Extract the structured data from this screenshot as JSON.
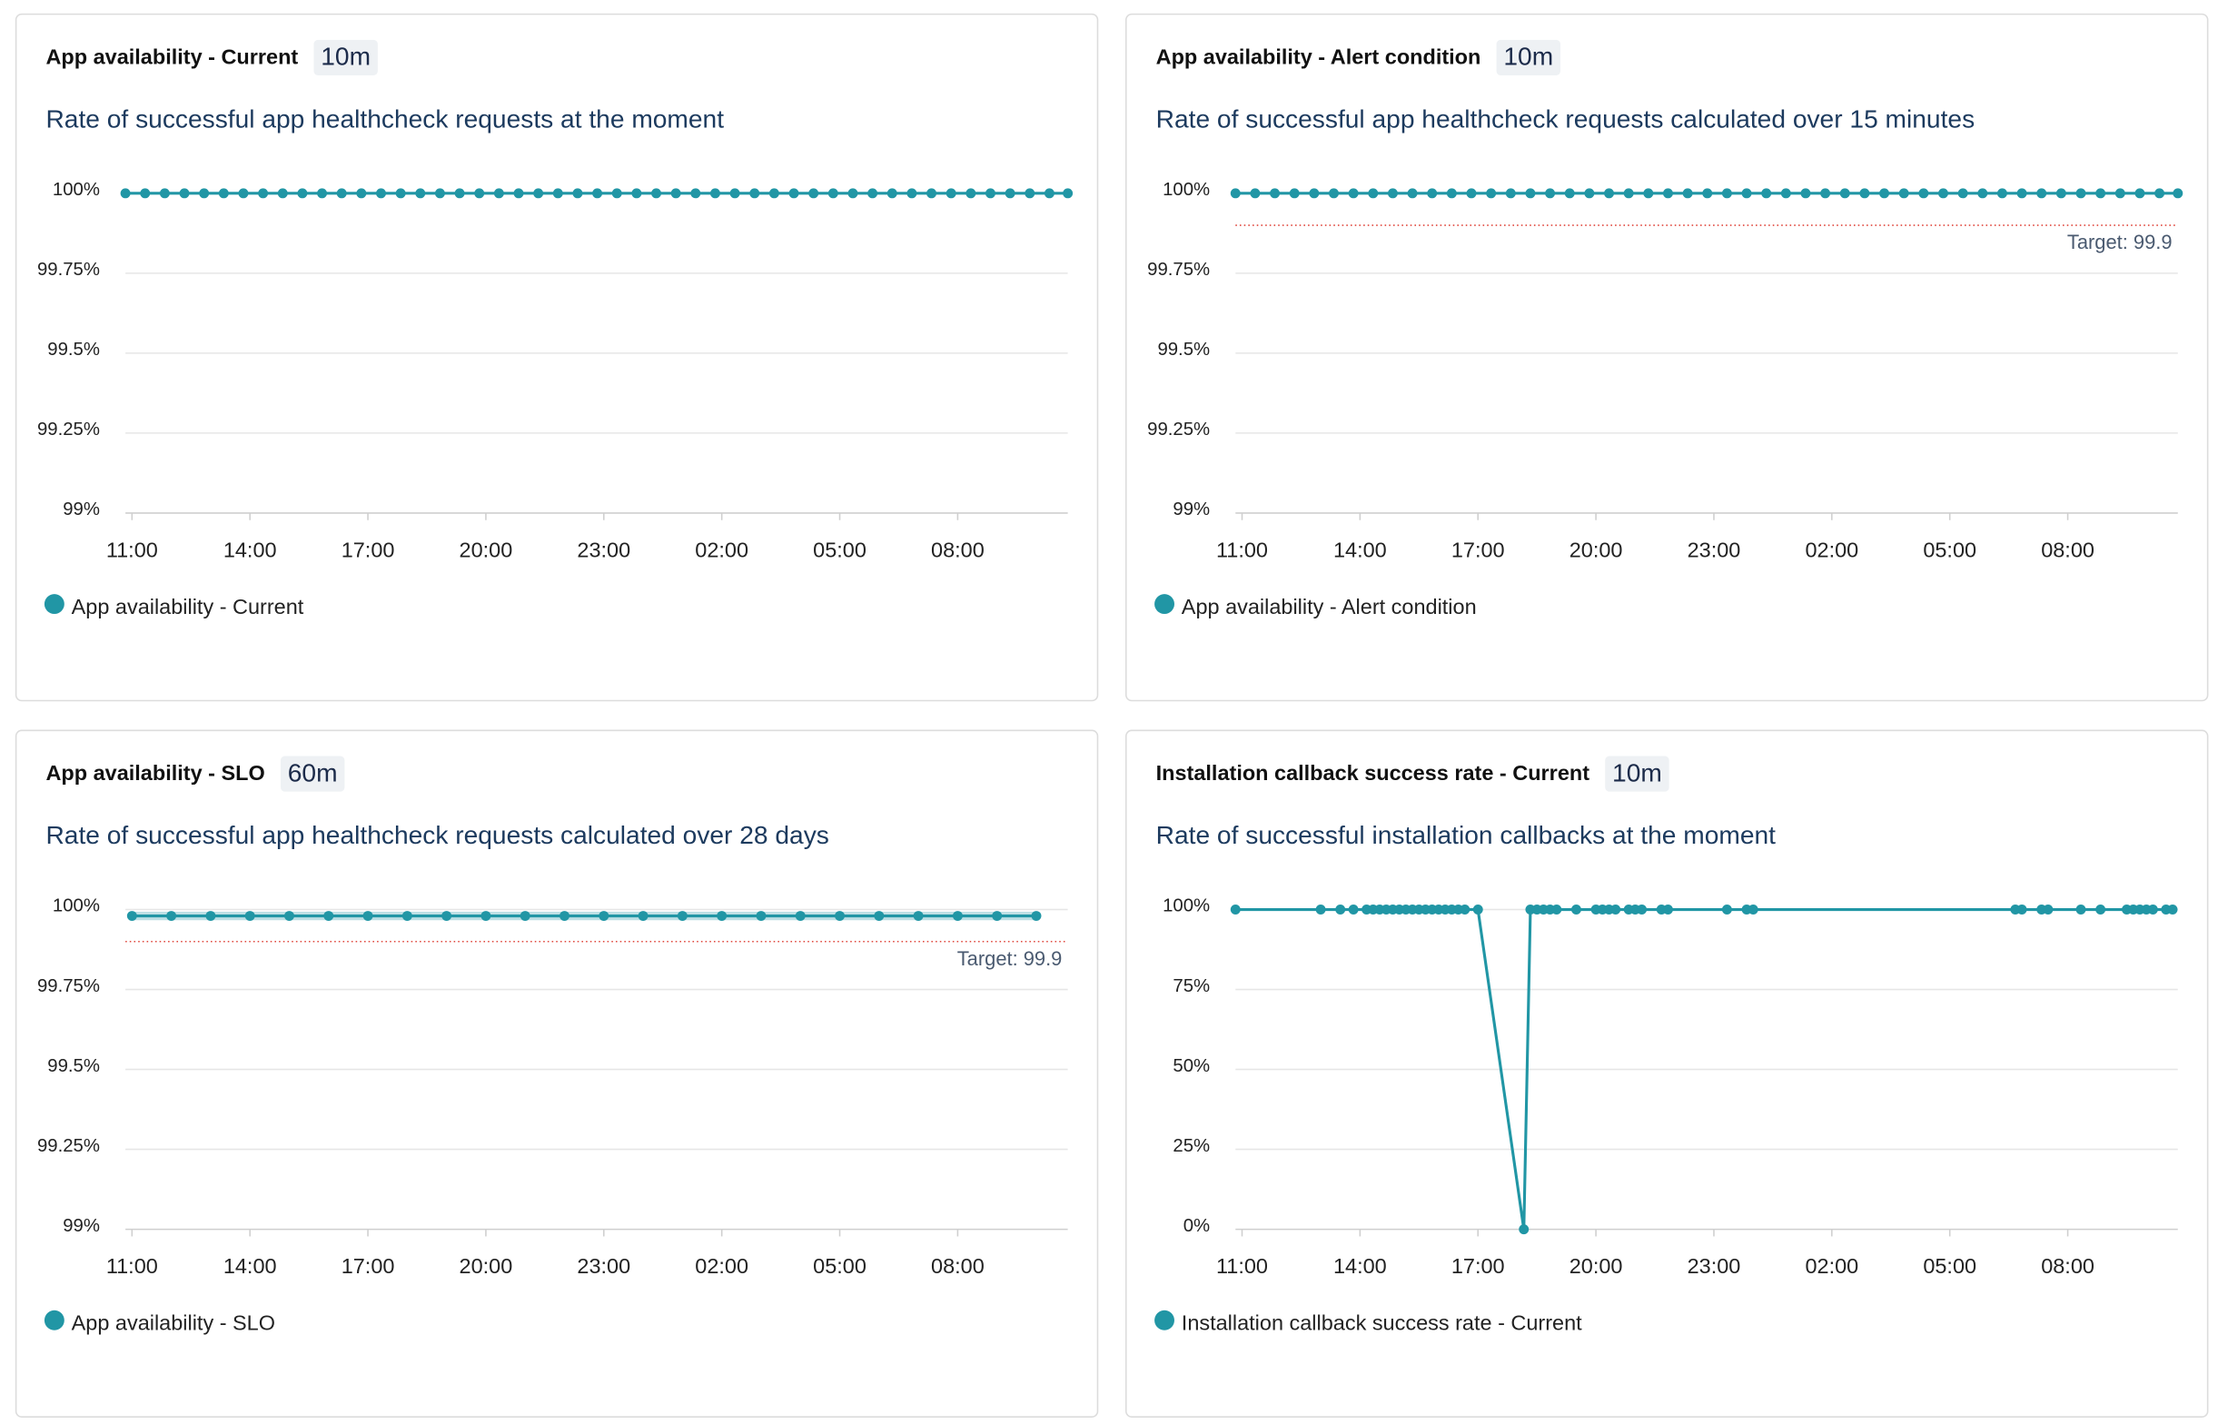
{
  "chart_data": [
    {
      "type": "line",
      "title": "App availability - Current",
      "time_window": "10m",
      "subtitle": "Rate of successful app healthcheck requests at the moment",
      "x": [
        "10:50",
        "11:20",
        "11:50",
        "12:20",
        "12:50",
        "13:20",
        "13:50",
        "14:20",
        "14:50",
        "15:20",
        "15:50",
        "16:20",
        "16:50",
        "17:20",
        "17:50",
        "18:20",
        "18:50",
        "19:20",
        "19:50",
        "20:20",
        "20:50",
        "21:20",
        "21:50",
        "22:20",
        "22:50",
        "23:20",
        "23:50",
        "00:20",
        "00:50",
        "01:20",
        "01:50",
        "02:20",
        "02:50",
        "03:20",
        "03:50",
        "04:20",
        "04:50",
        "05:20",
        "05:50",
        "06:20",
        "06:50",
        "07:20",
        "07:50",
        "08:20",
        "08:50",
        "09:20",
        "09:50",
        "10:20",
        "10:48"
      ],
      "series": [
        {
          "name": "App availability - Current",
          "color": "#2196a5",
          "values": [
            100,
            100,
            100,
            100,
            100,
            100,
            100,
            100,
            100,
            100,
            100,
            100,
            100,
            100,
            100,
            100,
            100,
            100,
            100,
            100,
            100,
            100,
            100,
            100,
            100,
            100,
            100,
            100,
            100,
            100,
            100,
            100,
            100,
            100,
            100,
            100,
            100,
            100,
            100,
            100,
            100,
            100,
            100,
            100,
            100,
            100,
            100,
            100,
            100
          ]
        }
      ],
      "xlim": [
        "10:50",
        "10:48"
      ],
      "xticks": [
        "11:00",
        "14:00",
        "17:00",
        "20:00",
        "23:00",
        "02:00",
        "05:00",
        "08:00"
      ],
      "ylim": [
        99,
        100
      ],
      "yticks": [
        {
          "value": 99,
          "label": "99%"
        },
        {
          "value": 99.25,
          "label": "99.25%"
        },
        {
          "value": 99.5,
          "label": "99.5%"
        },
        {
          "value": 99.75,
          "label": "99.75%"
        },
        {
          "value": 100,
          "label": "100%"
        }
      ],
      "grid": true
    },
    {
      "type": "line",
      "title": "App availability - Alert condition",
      "time_window": "10m",
      "subtitle": "Rate of successful app healthcheck requests calculated over 15 minutes",
      "x": [
        "10:50",
        "11:20",
        "11:50",
        "12:20",
        "12:50",
        "13:20",
        "13:50",
        "14:20",
        "14:50",
        "15:20",
        "15:50",
        "16:20",
        "16:50",
        "17:20",
        "17:50",
        "18:20",
        "18:50",
        "19:20",
        "19:50",
        "20:20",
        "20:50",
        "21:20",
        "21:50",
        "22:20",
        "22:50",
        "23:20",
        "23:50",
        "00:20",
        "00:50",
        "01:20",
        "01:50",
        "02:20",
        "02:50",
        "03:20",
        "03:50",
        "04:20",
        "04:50",
        "05:20",
        "05:50",
        "06:20",
        "06:50",
        "07:20",
        "07:50",
        "08:20",
        "08:50",
        "09:20",
        "09:50",
        "10:20",
        "10:48"
      ],
      "series": [
        {
          "name": "App availability - Alert condition",
          "color": "#2196a5",
          "values": [
            100,
            100,
            100,
            100,
            100,
            100,
            100,
            100,
            100,
            100,
            100,
            100,
            100,
            100,
            100,
            100,
            100,
            100,
            100,
            100,
            100,
            100,
            100,
            100,
            100,
            100,
            100,
            100,
            100,
            100,
            100,
            100,
            100,
            100,
            100,
            100,
            100,
            100,
            100,
            100,
            100,
            100,
            100,
            100,
            100,
            100,
            100,
            100,
            100
          ]
        }
      ],
      "target": 99.9,
      "target_label": "Target: 99.9",
      "xlim": [
        "10:50",
        "10:48"
      ],
      "xticks": [
        "11:00",
        "14:00",
        "17:00",
        "20:00",
        "23:00",
        "02:00",
        "05:00",
        "08:00"
      ],
      "ylim": [
        99,
        100
      ],
      "yticks": [
        {
          "value": 99,
          "label": "99%"
        },
        {
          "value": 99.25,
          "label": "99.25%"
        },
        {
          "value": 99.5,
          "label": "99.5%"
        },
        {
          "value": 99.75,
          "label": "99.75%"
        },
        {
          "value": 100,
          "label": "100%"
        }
      ],
      "grid": true
    },
    {
      "type": "line",
      "title": "App availability - SLO",
      "time_window": "60m",
      "subtitle": "Rate of successful app healthcheck requests calculated over 28 days",
      "x": [
        "11:00",
        "12:00",
        "13:00",
        "14:00",
        "15:00",
        "16:00",
        "17:00",
        "18:00",
        "19:00",
        "20:00",
        "21:00",
        "22:00",
        "23:00",
        "00:00",
        "01:00",
        "02:00",
        "03:00",
        "04:00",
        "05:00",
        "06:00",
        "07:00",
        "08:00",
        "09:00",
        "10:00"
      ],
      "series": [
        {
          "name": "App availability - SLO",
          "color": "#2196a5",
          "band": true,
          "values": [
            99.98,
            99.98,
            99.98,
            99.98,
            99.98,
            99.98,
            99.98,
            99.98,
            99.98,
            99.98,
            99.98,
            99.98,
            99.98,
            99.98,
            99.98,
            99.98,
            99.98,
            99.98,
            99.98,
            99.98,
            99.98,
            99.98,
            99.98,
            99.98
          ]
        }
      ],
      "target": 99.9,
      "target_label": "Target: 99.9",
      "xlim": [
        "10:50",
        "10:48"
      ],
      "xticks": [
        "11:00",
        "14:00",
        "17:00",
        "20:00",
        "23:00",
        "02:00",
        "05:00",
        "08:00"
      ],
      "ylim": [
        99,
        100
      ],
      "yticks": [
        {
          "value": 99,
          "label": "99%"
        },
        {
          "value": 99.25,
          "label": "99.25%"
        },
        {
          "value": 99.5,
          "label": "99.5%"
        },
        {
          "value": 99.75,
          "label": "99.75%"
        },
        {
          "value": 100,
          "label": "100%"
        }
      ],
      "grid": true
    },
    {
      "type": "line",
      "title": "Installation callback success rate - Current",
      "time_window": "10m",
      "subtitle": "Rate of successful installation callbacks at the moment",
      "x": [
        "10:50",
        "13:00",
        "13:30",
        "13:50",
        "14:10",
        "14:20",
        "14:30",
        "14:40",
        "14:50",
        "15:00",
        "15:10",
        "15:20",
        "15:30",
        "15:40",
        "15:50",
        "16:00",
        "16:10",
        "16:20",
        "16:30",
        "16:40",
        "17:00",
        "18:10",
        "18:20",
        "18:30",
        "18:40",
        "18:50",
        "19:00",
        "19:30",
        "20:00",
        "20:10",
        "20:20",
        "20:30",
        "20:50",
        "21:00",
        "21:10",
        "21:40",
        "21:50",
        "23:20",
        "23:50",
        "00:00",
        "06:40",
        "06:50",
        "07:20",
        "07:30",
        "08:20",
        "08:50",
        "09:30",
        "09:40",
        "09:50",
        "10:00",
        "10:10",
        "10:30",
        "10:40"
      ],
      "series": [
        {
          "name": "Installation callback success rate - Current",
          "color": "#2196a5",
          "values": [
            100,
            100,
            100,
            100,
            100,
            100,
            100,
            100,
            100,
            100,
            100,
            100,
            100,
            100,
            100,
            100,
            100,
            100,
            100,
            100,
            100,
            0,
            100,
            100,
            100,
            100,
            100,
            100,
            100,
            100,
            100,
            100,
            100,
            100,
            100,
            100,
            100,
            100,
            100,
            100,
            100,
            100,
            100,
            100,
            100,
            100,
            100,
            100,
            100,
            100,
            100,
            100,
            100
          ]
        }
      ],
      "xlim": [
        "10:50",
        "10:48"
      ],
      "xticks": [
        "11:00",
        "14:00",
        "17:00",
        "20:00",
        "23:00",
        "02:00",
        "05:00",
        "08:00"
      ],
      "ylim": [
        0,
        100
      ],
      "yticks": [
        {
          "value": 0,
          "label": "0%"
        },
        {
          "value": 25,
          "label": "25%"
        },
        {
          "value": 50,
          "label": "50%"
        },
        {
          "value": 75,
          "label": "75%"
        },
        {
          "value": 100,
          "label": "100%"
        }
      ],
      "grid": true
    }
  ]
}
